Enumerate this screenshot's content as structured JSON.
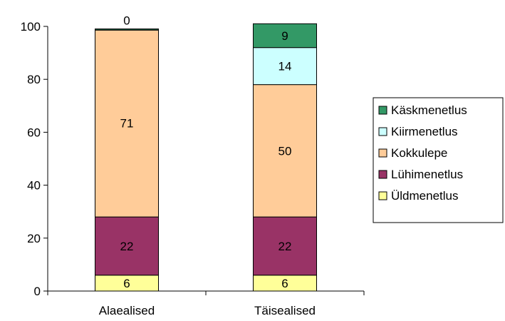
{
  "chart_data": {
    "type": "bar",
    "stacked": true,
    "categories": [
      "Alaealised",
      "Täisealised"
    ],
    "series": [
      {
        "name": "Üldmenetlus",
        "values": [
          6,
          6
        ],
        "color": "#ffff99"
      },
      {
        "name": "Lühimenetlus",
        "values": [
          22,
          22
        ],
        "color": "#993366"
      },
      {
        "name": "Kokkulepe",
        "values": [
          71,
          50
        ],
        "color": "#ffcc99"
      },
      {
        "name": "Kiirmenetlus",
        "values": [
          0,
          14
        ],
        "color": "#ccffff"
      },
      {
        "name": "Käskmenetlus",
        "values": [
          0,
          9
        ],
        "color": "#339966"
      }
    ],
    "data_labels": [
      [
        "6",
        "6"
      ],
      [
        "22",
        "22"
      ],
      [
        "71",
        "50"
      ],
      [
        "0",
        "14"
      ],
      [
        "",
        "9"
      ]
    ],
    "legend_order": [
      "Käskmenetlus",
      "Kiirmenetlus",
      "Kokkulepe",
      "Lühimenetlus",
      "Üldmenetlus"
    ],
    "legend_position": "right",
    "y_ticks": [
      0,
      20,
      40,
      60,
      80,
      100
    ],
    "ylim": [
      0,
      100
    ],
    "grid": false
  }
}
